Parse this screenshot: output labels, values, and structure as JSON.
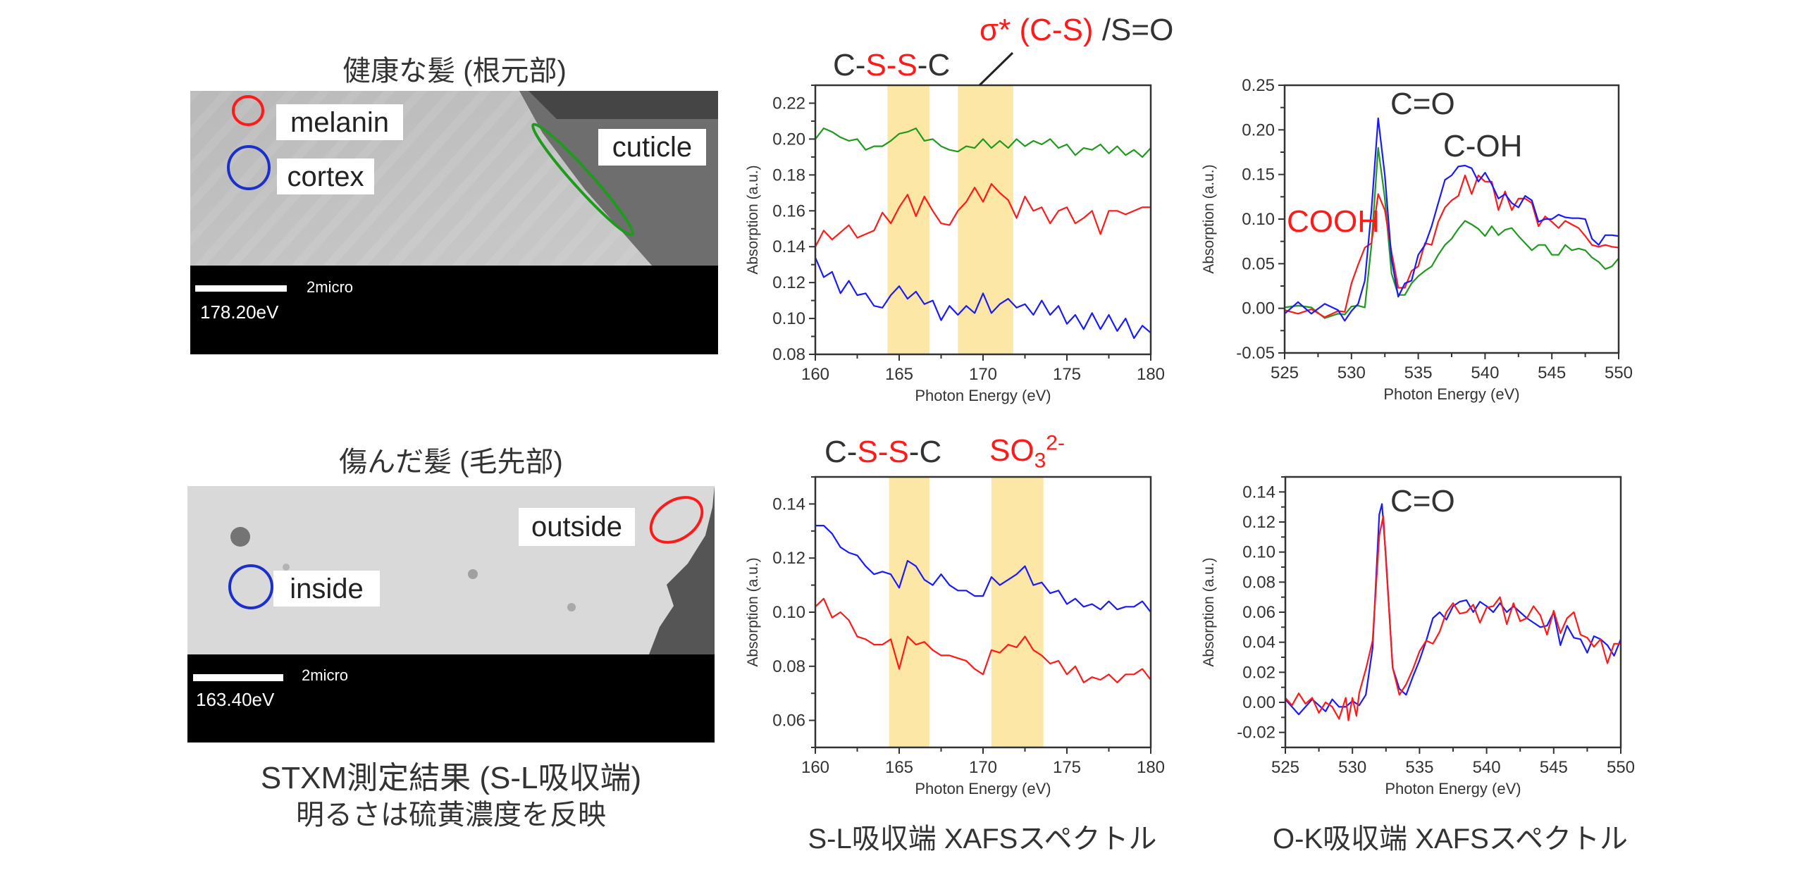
{
  "left_panel": {
    "healthy_title": "健康な髪 (根元部)",
    "damaged_title": "傷んだ髪 (毛先部)",
    "healthy_image": {
      "labels": {
        "melanin": "melanin",
        "cortex": "cortex",
        "cuticle": "cuticle"
      },
      "scale_label": "2micro",
      "energy": "178.20eV"
    },
    "damaged_image": {
      "labels": {
        "inside": "inside",
        "outside": "outside"
      },
      "scale_label": "2micro",
      "energy": "163.40eV"
    },
    "caption_line1": "STXM測定結果 (S-L吸収端)",
    "caption_line2": "明るさは硫黄濃度を反映"
  },
  "annotations": {
    "top_sl_cssc": [
      "C-",
      "S-S",
      "-C"
    ],
    "top_sl_sigma": "σ* (C-S)",
    "top_sl_so": " /S=O",
    "bottom_sl_cssc": [
      "C-",
      "S-S",
      "-C"
    ],
    "bottom_sl_so3": {
      "base": "SO",
      "sub": "3",
      "sup": "2-"
    },
    "top_ok_co": "C=O",
    "top_ok_coh": "C-OH",
    "top_ok_cooh": "COOH",
    "bottom_ok_co": "C=O"
  },
  "captions": {
    "sl": "S-L吸収端 XAFSスペクトル",
    "ok": "O-K吸収端 XAFSスペクトル"
  },
  "colors": {
    "blue": "#1a1aff",
    "red": "#ff1a1a",
    "green": "#1f9a1f",
    "band": "#fde7a6",
    "axis": "#333333"
  },
  "chart_data": [
    {
      "type": "line",
      "xlabel": "Photon Energy (eV)",
      "ylabel": "Absorption (a.u.)",
      "xlim": [
        160,
        180
      ],
      "ylim": [
        0.08,
        0.23
      ],
      "xticks": [
        160,
        165,
        170,
        175,
        180
      ],
      "yticks": [
        0.08,
        0.1,
        0.12,
        0.14,
        0.16,
        0.18,
        0.2,
        0.22
      ],
      "ytick_labels": [
        "0.08",
        "0.10",
        "0.12",
        "0.14",
        "0.16",
        "0.18",
        "0.20",
        "0.22"
      ],
      "highlight_bands": [
        [
          164.3,
          166.8
        ],
        [
          168.5,
          171.8
        ]
      ],
      "grid": false,
      "series": [
        {
          "color": "#1f9a1f",
          "x": "160:0.5:180",
          "y": [
            0.2,
            0.206,
            0.204,
            0.201,
            0.199,
            0.2,
            0.194,
            0.196,
            0.196,
            0.199,
            0.203,
            0.204,
            0.206,
            0.199,
            0.2,
            0.196,
            0.194,
            0.193,
            0.196,
            0.195,
            0.2,
            0.195,
            0.199,
            0.195,
            0.2,
            0.196,
            0.199,
            0.197,
            0.2,
            0.195,
            0.197,
            0.191,
            0.195,
            0.194,
            0.197,
            0.192,
            0.196,
            0.191,
            0.194,
            0.19,
            0.195
          ]
        },
        {
          "color": "#ff1a1a",
          "x": "160:0.5:180",
          "y": [
            0.14,
            0.149,
            0.144,
            0.148,
            0.152,
            0.145,
            0.147,
            0.149,
            0.159,
            0.153,
            0.162,
            0.169,
            0.157,
            0.168,
            0.16,
            0.153,
            0.152,
            0.16,
            0.165,
            0.173,
            0.165,
            0.175,
            0.17,
            0.166,
            0.156,
            0.168,
            0.16,
            0.162,
            0.153,
            0.16,
            0.162,
            0.153,
            0.156,
            0.16,
            0.147,
            0.16,
            0.16,
            0.158,
            0.16,
            0.162,
            0.162
          ]
        },
        {
          "color": "#1a1aff",
          "x": "160:0.5:180",
          "y": [
            0.134,
            0.123,
            0.126,
            0.114,
            0.121,
            0.113,
            0.114,
            0.107,
            0.106,
            0.113,
            0.118,
            0.111,
            0.115,
            0.108,
            0.11,
            0.099,
            0.107,
            0.102,
            0.107,
            0.103,
            0.114,
            0.103,
            0.108,
            0.111,
            0.106,
            0.108,
            0.102,
            0.11,
            0.102,
            0.107,
            0.097,
            0.102,
            0.094,
            0.103,
            0.094,
            0.102,
            0.093,
            0.1,
            0.089,
            0.096,
            0.092
          ]
        }
      ]
    },
    {
      "type": "line",
      "xlabel": "Photon Energy (eV)",
      "ylabel": "Absorption (a.u.)",
      "xlim": [
        525,
        550
      ],
      "ylim": [
        -0.05,
        0.25
      ],
      "xticks": [
        525,
        530,
        535,
        540,
        545,
        550
      ],
      "yticks": [
        -0.05,
        0.0,
        0.05,
        0.1,
        0.15,
        0.2,
        0.25
      ],
      "ytick_labels": [
        "-0.05",
        "0.00",
        "0.05",
        "0.10",
        "0.15",
        "0.20",
        "0.25"
      ],
      "grid": false,
      "series": [
        {
          "color": "#1f9a1f",
          "x": [
            525,
            526,
            527,
            528,
            529,
            529.5,
            530,
            530.5,
            531,
            531.5,
            532,
            532.5,
            533,
            533.5,
            534,
            534.5,
            535,
            535.5,
            536,
            536.5,
            537,
            537.5,
            538,
            538.5,
            539,
            539.5,
            540,
            540.5,
            541,
            541.5,
            542,
            542.5,
            543,
            543.5,
            544,
            544.5,
            545,
            545.5,
            546,
            546.5,
            547,
            547.5,
            548,
            548.5,
            549,
            549.5,
            550
          ],
          "y": [
            0.001,
            0.003,
            0.001,
            -0.011,
            -0.006,
            -0.007,
            0.002,
            0.003,
            0.001,
            0.071,
            0.18,
            0.123,
            0.039,
            0.015,
            0.015,
            0.028,
            0.036,
            0.042,
            0.047,
            0.06,
            0.071,
            0.078,
            0.089,
            0.098,
            0.094,
            0.089,
            0.081,
            0.092,
            0.082,
            0.088,
            0.09,
            0.081,
            0.073,
            0.065,
            0.071,
            0.071,
            0.06,
            0.06,
            0.071,
            0.065,
            0.067,
            0.065,
            0.057,
            0.052,
            0.044,
            0.047,
            0.056
          ]
        },
        {
          "color": "#ff1a1a",
          "x": [
            525,
            526,
            527,
            528,
            529,
            529.5,
            530,
            530.5,
            531,
            531.5,
            532,
            532.5,
            533,
            533.5,
            534,
            534.5,
            535,
            535.5,
            536,
            536.5,
            537,
            537.5,
            538,
            538.5,
            539,
            539.5,
            540,
            540.5,
            541,
            541.5,
            542,
            542.5,
            543,
            543.5,
            544,
            544.5,
            545,
            545.5,
            546,
            546.5,
            547,
            547.5,
            548,
            548.5,
            549,
            549.5,
            550
          ],
          "y": [
            -0.002,
            -0.006,
            -0.001,
            -0.01,
            -0.003,
            -0.004,
            0.028,
            0.049,
            0.068,
            0.073,
            0.128,
            0.11,
            0.063,
            0.023,
            0.023,
            0.042,
            0.047,
            0.073,
            0.071,
            0.097,
            0.113,
            0.121,
            0.126,
            0.149,
            0.128,
            0.149,
            0.142,
            0.142,
            0.11,
            0.131,
            0.11,
            0.123,
            0.123,
            0.118,
            0.092,
            0.103,
            0.097,
            0.09,
            0.098,
            0.094,
            0.09,
            0.081,
            0.071,
            0.069,
            0.071,
            0.069,
            0.068
          ]
        },
        {
          "color": "#1a1aff",
          "x": [
            525,
            526,
            527,
            528,
            529,
            529.5,
            530,
            530.5,
            531,
            531.5,
            532,
            532.5,
            533,
            533.5,
            534,
            534.5,
            535,
            535.5,
            536,
            536.5,
            537,
            537.5,
            538,
            538.5,
            539,
            539.5,
            540,
            540.5,
            541,
            541.5,
            542,
            542.5,
            543,
            543.5,
            544,
            544.5,
            545,
            545.5,
            546,
            546.5,
            547,
            547.5,
            548,
            548.5,
            549,
            549.5,
            550
          ],
          "y": [
            -0.006,
            0.007,
            -0.006,
            0.005,
            -0.002,
            -0.014,
            -0.003,
            0.005,
            0.031,
            0.11,
            0.213,
            0.149,
            0.055,
            0.013,
            0.028,
            0.031,
            0.06,
            0.071,
            0.092,
            0.118,
            0.144,
            0.149,
            0.159,
            0.16,
            0.157,
            0.142,
            0.152,
            0.139,
            0.123,
            0.128,
            0.118,
            0.113,
            0.126,
            0.121,
            0.097,
            0.1,
            0.1,
            0.105,
            0.102,
            0.101,
            0.101,
            0.1,
            0.078,
            0.071,
            0.082,
            0.082,
            0.081
          ]
        }
      ]
    },
    {
      "type": "line",
      "xlabel": "Photon Energy (eV)",
      "ylabel": "Absorption (a.u.)",
      "xlim": [
        160,
        180
      ],
      "ylim": [
        0.05,
        0.15
      ],
      "xticks": [
        160,
        165,
        170,
        175,
        180
      ],
      "yticks": [
        0.06,
        0.08,
        0.1,
        0.12,
        0.14
      ],
      "ytick_labels": [
        "0.06",
        "0.08",
        "0.10",
        "0.12",
        "0.14"
      ],
      "highlight_bands": [
        [
          164.4,
          166.8
        ],
        [
          170.5,
          173.6
        ]
      ],
      "grid": false,
      "series": [
        {
          "color": "#1a1aff",
          "x": "160:0.5:180",
          "y": [
            0.132,
            0.132,
            0.129,
            0.124,
            0.122,
            0.121,
            0.117,
            0.114,
            0.115,
            0.114,
            0.109,
            0.119,
            0.117,
            0.112,
            0.11,
            0.114,
            0.11,
            0.108,
            0.108,
            0.106,
            0.106,
            0.113,
            0.11,
            0.112,
            0.114,
            0.117,
            0.11,
            0.111,
            0.107,
            0.108,
            0.103,
            0.105,
            0.102,
            0.103,
            0.101,
            0.104,
            0.101,
            0.102,
            0.102,
            0.104,
            0.1
          ]
        },
        {
          "color": "#ff1a1a",
          "x": "160:0.5:180",
          "y": [
            0.102,
            0.105,
            0.098,
            0.1,
            0.097,
            0.091,
            0.09,
            0.088,
            0.088,
            0.09,
            0.079,
            0.091,
            0.088,
            0.089,
            0.086,
            0.084,
            0.084,
            0.083,
            0.082,
            0.079,
            0.077,
            0.086,
            0.085,
            0.088,
            0.087,
            0.091,
            0.086,
            0.084,
            0.081,
            0.082,
            0.077,
            0.08,
            0.074,
            0.076,
            0.075,
            0.077,
            0.074,
            0.077,
            0.077,
            0.079,
            0.075
          ]
        }
      ]
    },
    {
      "type": "line",
      "xlabel": "Photon Energy (eV)",
      "ylabel": "Absorption (a.u.)",
      "xlim": [
        525,
        550
      ],
      "ylim": [
        -0.03,
        0.15
      ],
      "xticks": [
        525,
        530,
        535,
        540,
        545,
        550
      ],
      "yticks": [
        -0.02,
        0.0,
        0.02,
        0.04,
        0.06,
        0.08,
        0.1,
        0.12,
        0.14
      ],
      "ytick_labels": [
        "-0.02",
        "0.00",
        "0.02",
        "0.04",
        "0.06",
        "0.08",
        "0.10",
        "0.12",
        "0.14"
      ],
      "grid": false,
      "series": [
        {
          "color": "#1a1aff",
          "x": [
            525,
            526,
            527,
            528,
            528.5,
            529,
            529.5,
            530,
            530.5,
            531,
            531.5,
            532,
            532.2,
            532.5,
            533,
            533.5,
            534,
            534.5,
            535,
            535.5,
            536,
            536.5,
            537,
            537.5,
            538,
            538.5,
            539,
            539.5,
            540,
            540.5,
            541,
            541.5,
            542,
            542.5,
            543,
            543.5,
            544,
            544.5,
            545,
            545.5,
            546,
            546.5,
            547,
            547.5,
            548,
            548.5,
            549,
            549.5,
            550
          ],
          "y": [
            0.002,
            -0.008,
            0.002,
            -0.006,
            0.002,
            -0.003,
            -0.003,
            0.001,
            -0.002,
            0.005,
            0.036,
            0.125,
            0.132,
            0.096,
            0.023,
            0.009,
            0.005,
            0.017,
            0.028,
            0.041,
            0.056,
            0.06,
            0.055,
            0.064,
            0.067,
            0.068,
            0.06,
            0.067,
            0.064,
            0.06,
            0.066,
            0.06,
            0.064,
            0.06,
            0.056,
            0.053,
            0.05,
            0.051,
            0.06,
            0.038,
            0.051,
            0.043,
            0.042,
            0.033,
            0.044,
            0.042,
            0.038,
            0.031,
            0.042
          ]
        },
        {
          "color": "#ff1a1a",
          "x": [
            525,
            525.5,
            526,
            526.5,
            527,
            527.5,
            528,
            528.5,
            529,
            529.5,
            529.7,
            530,
            530.3,
            530.5,
            531,
            531.5,
            532,
            532.3,
            532.5,
            533,
            533.5,
            534,
            534.5,
            535,
            535.5,
            536,
            536.5,
            537,
            537.5,
            538,
            538.5,
            539,
            539.5,
            540,
            540.5,
            541,
            541.5,
            542,
            542.5,
            543,
            543.5,
            544,
            544.5,
            545,
            545.5,
            546,
            546.5,
            547,
            547.5,
            548,
            548.5,
            549,
            549.5,
            550
          ],
          "y": [
            0.003,
            -0.002,
            0.006,
            -0.001,
            0.003,
            -0.007,
            0.0,
            -0.003,
            -0.011,
            0.003,
            -0.012,
            0.003,
            -0.009,
            0.006,
            0.022,
            0.041,
            0.111,
            0.124,
            0.094,
            0.023,
            0.005,
            0.012,
            0.022,
            0.034,
            0.041,
            0.039,
            0.047,
            0.06,
            0.066,
            0.059,
            0.06,
            0.065,
            0.053,
            0.063,
            0.064,
            0.07,
            0.052,
            0.066,
            0.054,
            0.056,
            0.064,
            0.058,
            0.045,
            0.061,
            0.046,
            0.056,
            0.06,
            0.045,
            0.043,
            0.037,
            0.042,
            0.026,
            0.039,
            0.039
          ]
        }
      ]
    }
  ]
}
